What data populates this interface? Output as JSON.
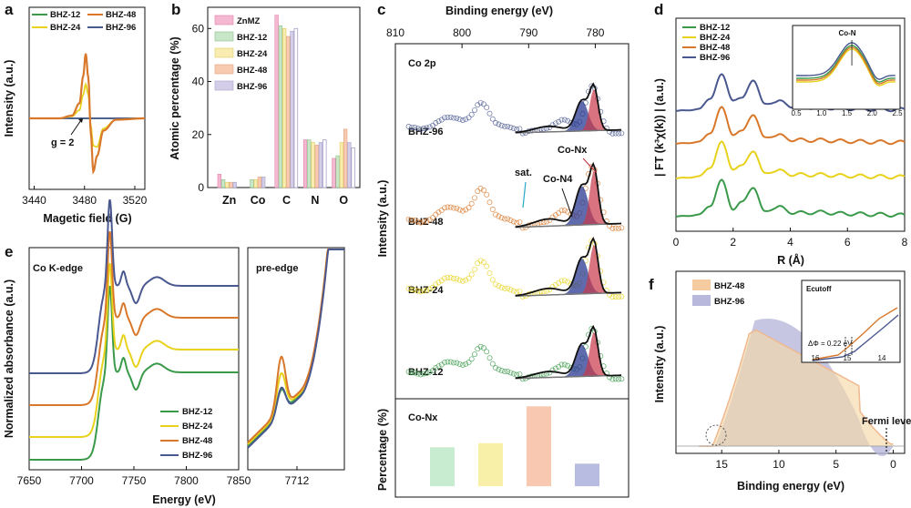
{
  "panels": {
    "a": {
      "letter": "a",
      "xlabel": "Magetic field (G)",
      "ylabel": "Intensity (a.u.)",
      "xticks": [
        "3440",
        "3480",
        "3520"
      ],
      "xlim": [
        3436,
        3528
      ],
      "legend": [
        "BHZ-12",
        "BHZ-48",
        "BHZ-24",
        "BHZ-96"
      ],
      "annotation": "g = 2",
      "annotation_x": 3484
    },
    "b": {
      "letter": "b",
      "ylabel": "Atomic percentage (%)",
      "yticks": [
        "0",
        "20",
        "40",
        "60"
      ],
      "ylim": [
        0,
        68
      ]
    },
    "c": {
      "letter": "c",
      "xlabel": "Binding energy (eV)",
      "xticks": [
        "810",
        "800",
        "790",
        "780"
      ],
      "xlim": [
        810,
        775
      ],
      "ylabel": "Intensity (a.u.)",
      "title": "Co 2p",
      "labels": [
        "BHZ-96",
        "BHZ-48",
        "BHZ-24",
        "BHZ-12"
      ],
      "ann_conx": "Co-Nx",
      "ann_con4": "Co-N4",
      "ann_sat": "sat.",
      "bottom_ylabel": "Percentage (%)",
      "bottom_title": "Co-Nx"
    },
    "d": {
      "letter": "d",
      "xlabel": "R (Å)",
      "ylabel": "| FT (k³χ(k)) | (a.u.)",
      "xticks": [
        "0",
        "2",
        "4",
        "6",
        "8"
      ],
      "xlim": [
        0,
        8
      ],
      "legend": [
        "BHZ-12",
        "BHZ-24",
        "BHZ-48",
        "BHZ-96"
      ],
      "inset_title": "Co-N",
      "inset_xticks": [
        "0.5",
        "1.0",
        "1.5",
        "2.0",
        "2.5"
      ]
    },
    "e": {
      "letter": "e",
      "title": "Co K-edge",
      "title2": "pre-edge",
      "xlabel": "Energy (eV)",
      "ylabel": "Normalized absorbance (a.u.)",
      "xticks": [
        "7650",
        "7700",
        "7750",
        "7800",
        "7850"
      ],
      "xlim": [
        7650,
        7850
      ],
      "xticks2": [
        "7712"
      ],
      "legend": [
        "BHZ-12",
        "BHZ-24",
        "BHZ-48",
        "BHZ-96"
      ]
    },
    "f": {
      "letter": "f",
      "xlabel": "Binding energy (eV)",
      "ylabel": "Intensity (a.u.)",
      "xticks": [
        "15",
        "10",
        "5",
        "0"
      ],
      "xlim": [
        19,
        -1
      ],
      "legend": [
        "BHZ-48",
        "BHZ-96"
      ],
      "fermi_label": "Fermi level",
      "inset_title": "Ecutoff",
      "inset_ann": "ΔΦ = 0.22 eV",
      "inset_xticks": [
        "16",
        "15",
        "14"
      ]
    }
  },
  "colors": {
    "BHZ-12": "#3a9a4a",
    "BHZ-24": "#e8d21c",
    "BHZ-48": "#d9782a",
    "BHZ-96": "#4a5890",
    "ZnMZ": "#f0a8c8"
  },
  "chart_data": [
    {
      "panel": "a",
      "type": "line",
      "x": [
        3436,
        3460,
        3470,
        3476,
        3479,
        3481,
        3483,
        3485,
        3487,
        3490,
        3495,
        3505,
        3528
      ],
      "series": [
        {
          "name": "BHZ-12",
          "values": [
            0,
            0,
            0,
            0,
            0,
            0,
            0,
            0,
            0,
            0,
            0,
            0,
            0
          ]
        },
        {
          "name": "BHZ-24",
          "values": [
            0,
            0,
            0.03,
            0.12,
            0.35,
            0.5,
            0.35,
            -0.1,
            -0.4,
            -0.42,
            -0.15,
            -0.02,
            0
          ]
        },
        {
          "name": "BHZ-48",
          "values": [
            0,
            0,
            0.04,
            0.22,
            0.62,
            0.95,
            0.6,
            -0.2,
            -0.78,
            -0.55,
            -0.18,
            -0.02,
            0
          ]
        },
        {
          "name": "BHZ-96",
          "values": [
            0,
            0,
            0,
            0,
            0,
            0,
            0,
            0,
            0,
            0,
            0,
            0,
            0
          ]
        }
      ]
    },
    {
      "panel": "b",
      "type": "bar",
      "categories": [
        "Zn",
        "Co",
        "C",
        "N",
        "O"
      ],
      "ylim": [
        0,
        68
      ],
      "series": [
        {
          "name": "ZnMZ",
          "values": [
            5,
            0,
            65,
            18,
            11
          ]
        },
        {
          "name": "BHZ-12",
          "values": [
            3,
            3,
            61,
            18,
            12
          ]
        },
        {
          "name": "BHZ-24",
          "values": [
            2,
            3,
            60,
            17,
            17
          ]
        },
        {
          "name": "BHZ-48",
          "values": [
            2,
            4,
            57,
            16,
            22
          ]
        },
        {
          "name": "BHZ-96",
          "values": [
            2,
            4,
            59,
            17,
            17
          ]
        }
      ],
      "extra_series": {
        "name": "BHZ-96 (outline)",
        "values": [
          0,
          0,
          60,
          18,
          15
        ]
      }
    },
    {
      "panel": "c-bottom",
      "type": "bar",
      "title": "Co-Nx",
      "categories": [
        "BHZ-12",
        "BHZ-24",
        "BHZ-48",
        "BHZ-96"
      ],
      "values": [
        38,
        42,
        78,
        22
      ],
      "ylim": [
        0,
        80
      ]
    },
    {
      "panel": "d",
      "type": "line",
      "x": [
        0,
        0.8,
        1.2,
        1.6,
        2.0,
        2.3,
        2.7,
        3.1,
        3.6,
        4.2,
        5.0,
        6.0,
        7.0,
        8.0
      ],
      "series": [
        {
          "name": "BHZ-12",
          "values": [
            0,
            0.05,
            0.3,
            1.0,
            0.2,
            0.4,
            0.8,
            0.15,
            0.25,
            0.1,
            0.12,
            0.08,
            0.06,
            0.04
          ]
        },
        {
          "name": "BHZ-24",
          "values": [
            0,
            0.05,
            0.3,
            1.0,
            0.25,
            0.35,
            0.75,
            0.15,
            0.2,
            0.1,
            0.1,
            0.07,
            0.05,
            0.04
          ]
        },
        {
          "name": "BHZ-48",
          "values": [
            0,
            0.05,
            0.3,
            1.0,
            0.25,
            0.35,
            0.8,
            0.18,
            0.22,
            0.1,
            0.1,
            0.07,
            0.05,
            0.04
          ]
        },
        {
          "name": "BHZ-96",
          "values": [
            0,
            0.05,
            0.35,
            1.0,
            0.3,
            0.35,
            0.85,
            0.2,
            0.25,
            0.12,
            0.1,
            0.07,
            0.05,
            0.04
          ]
        }
      ]
    }
  ]
}
